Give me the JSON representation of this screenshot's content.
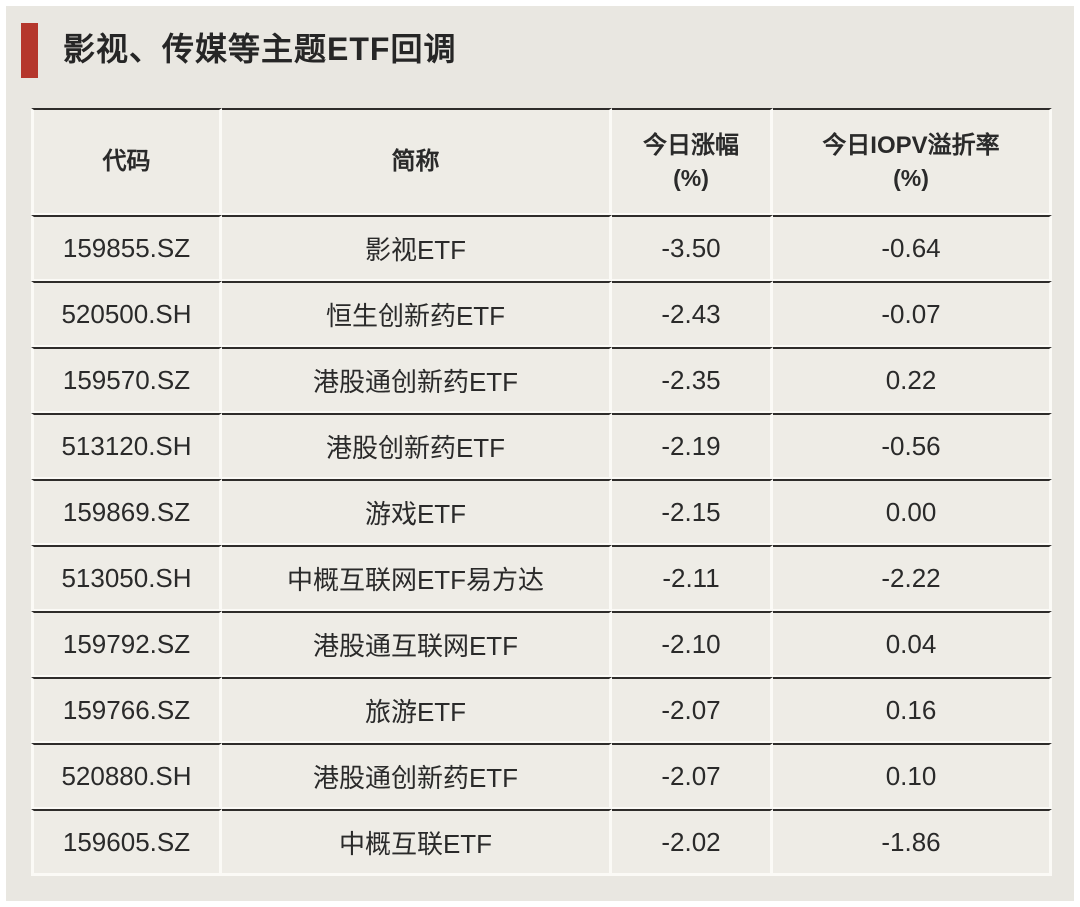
{
  "page": {
    "outer_background": "#ffffff",
    "panel_background": "#e9e7e1"
  },
  "title": {
    "text": "影视、传媒等主题ETF回调",
    "accent_color": "#b5372c",
    "text_color": "#262626"
  },
  "table": {
    "cell_background": "#eeece6",
    "dark_line_color": "#2e2c2a",
    "light_line_color": "#fbfaf6",
    "text_color": "#2a2a2a",
    "headers": [
      {
        "label": "代码",
        "sub": ""
      },
      {
        "label": "简称",
        "sub": ""
      },
      {
        "label": "今日涨幅",
        "sub": "(%)"
      },
      {
        "label": "今日IOPV溢折率",
        "sub": "(%)"
      }
    ],
    "rows": [
      {
        "code": "159855.SZ",
        "name": "影视ETF",
        "change": "-3.50",
        "iopv": "-0.64"
      },
      {
        "code": "520500.SH",
        "name": "恒生创新药ETF",
        "change": "-2.43",
        "iopv": "-0.07"
      },
      {
        "code": "159570.SZ",
        "name": "港股通创新药ETF",
        "change": "-2.35",
        "iopv": "0.22"
      },
      {
        "code": "513120.SH",
        "name": "港股创新药ETF",
        "change": "-2.19",
        "iopv": "-0.56"
      },
      {
        "code": "159869.SZ",
        "name": "游戏ETF",
        "change": "-2.15",
        "iopv": "0.00"
      },
      {
        "code": "513050.SH",
        "name": "中概互联网ETF易方达",
        "change": "-2.11",
        "iopv": "-2.22"
      },
      {
        "code": "159792.SZ",
        "name": "港股通互联网ETF",
        "change": "-2.10",
        "iopv": "0.04"
      },
      {
        "code": "159766.SZ",
        "name": "旅游ETF",
        "change": "-2.07",
        "iopv": "0.16"
      },
      {
        "code": "520880.SH",
        "name": "港股通创新药ETF",
        "change": "-2.07",
        "iopv": "0.10"
      },
      {
        "code": "159605.SZ",
        "name": "中概互联ETF",
        "change": "-2.02",
        "iopv": "-1.86"
      }
    ]
  },
  "chart_data": {
    "type": "table",
    "title": "影视、传媒等主题ETF回调",
    "columns": [
      "代码",
      "简称",
      "今日涨幅(%)",
      "今日IOPV溢折率(%)"
    ],
    "rows": [
      [
        "159855.SZ",
        "影视ETF",
        -3.5,
        -0.64
      ],
      [
        "520500.SH",
        "恒生创新药ETF",
        -2.43,
        -0.07
      ],
      [
        "159570.SZ",
        "港股通创新药ETF",
        -2.35,
        0.22
      ],
      [
        "513120.SH",
        "港股创新药ETF",
        -2.19,
        -0.56
      ],
      [
        "159869.SZ",
        "游戏ETF",
        -2.15,
        0.0
      ],
      [
        "513050.SH",
        "中概互联网ETF易方达",
        -2.11,
        -2.22
      ],
      [
        "159792.SZ",
        "港股通互联网ETF",
        -2.1,
        0.04
      ],
      [
        "159766.SZ",
        "旅游ETF",
        -2.07,
        0.16
      ],
      [
        "520880.SH",
        "港股通创新药ETF",
        -2.07,
        0.1
      ],
      [
        "159605.SZ",
        "中概互联ETF",
        -2.02,
        -1.86
      ]
    ]
  }
}
